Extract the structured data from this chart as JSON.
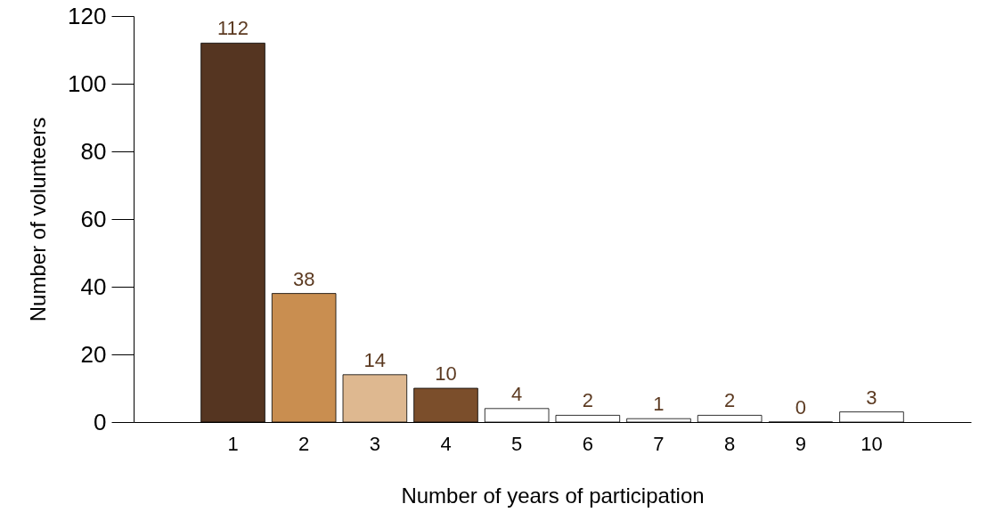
{
  "chart_data": {
    "type": "bar",
    "xlabel": "Number of years of participation",
    "ylabel": "Number of volunteers",
    "categories": [
      "1",
      "2",
      "3",
      "4",
      "5",
      "6",
      "7",
      "8",
      "9",
      "10"
    ],
    "values": [
      112,
      38,
      14,
      10,
      4,
      2,
      1,
      2,
      0,
      3
    ],
    "colors": [
      "#553521",
      "#c98e50",
      "#deb890",
      "#7b4e2b",
      "#ffffff",
      "#ffffff",
      "#ffffff",
      "#ffffff",
      "#ffffff",
      "#ffffff"
    ],
    "ylim": [
      0,
      120
    ],
    "yticks": [
      0,
      20,
      40,
      60,
      80,
      100,
      120
    ],
    "grid": false,
    "data_labels": true
  }
}
